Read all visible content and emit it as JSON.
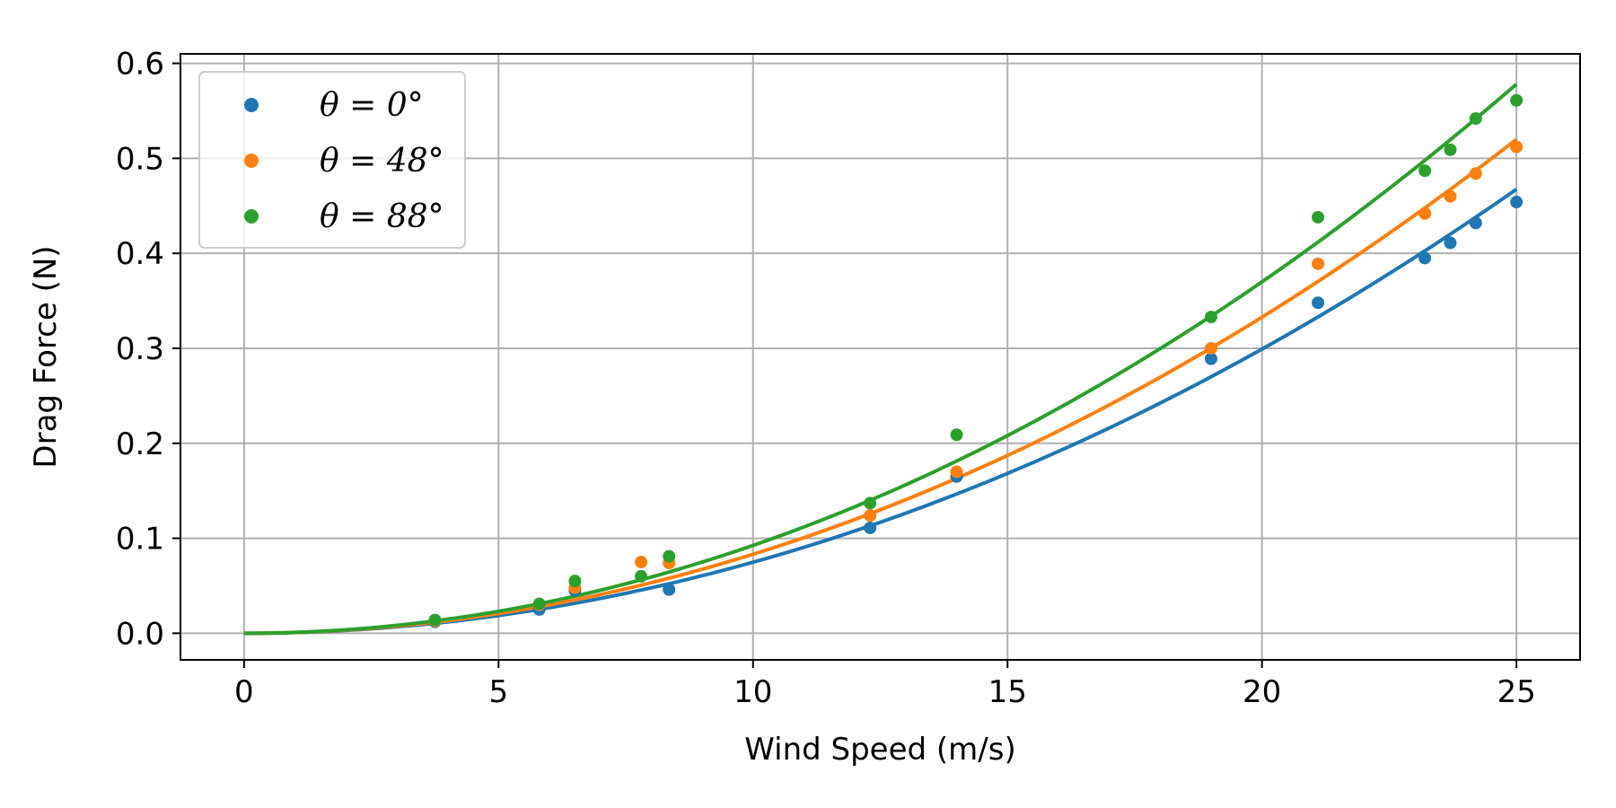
{
  "chart_data": {
    "type": "scatter",
    "xlabel": "Wind Speed (m/s)",
    "ylabel": "Drag Force (N)",
    "xlim": [
      -1.25,
      26.25
    ],
    "ylim": [
      -0.028,
      0.61
    ],
    "xticks": [
      0,
      5,
      10,
      15,
      20,
      25
    ],
    "xtick_labels": [
      "0",
      "5",
      "10",
      "15",
      "20",
      "25"
    ],
    "yticks": [
      0.0,
      0.1,
      0.2,
      0.3,
      0.4,
      0.5,
      0.6
    ],
    "ytick_labels": [
      "0.0",
      "0.1",
      "0.2",
      "0.3",
      "0.4",
      "0.5",
      "0.6"
    ],
    "grid": true,
    "legend_position": "upper-left",
    "series": [
      {
        "name": "θ = 0°",
        "color": "#1f77b4",
        "x": [
          3.75,
          5.8,
          6.5,
          8.35,
          12.3,
          14.0,
          19.0,
          21.1,
          23.2,
          23.7,
          24.2,
          25.0
        ],
        "y": [
          0.012,
          0.025,
          0.045,
          0.046,
          0.111,
          0.165,
          0.289,
          0.348,
          0.395,
          0.411,
          0.432,
          0.454
        ],
        "fit_coefficient": 0.000748
      },
      {
        "name": "θ = 48°",
        "color": "#ff7f0e",
        "x": [
          3.75,
          5.8,
          6.5,
          7.8,
          8.35,
          12.3,
          14.0,
          19.0,
          21.1,
          23.2,
          23.7,
          24.2,
          25.0
        ],
        "y": [
          0.013,
          0.03,
          0.048,
          0.075,
          0.074,
          0.124,
          0.17,
          0.3,
          0.389,
          0.442,
          0.46,
          0.484,
          0.512
        ],
        "fit_coefficient": 0.000832
      },
      {
        "name": "θ = 88°",
        "color": "#2ca02c",
        "x": [
          3.75,
          5.8,
          6.5,
          7.8,
          8.35,
          12.3,
          14.0,
          19.0,
          21.1,
          23.2,
          23.7,
          24.2,
          25.0
        ],
        "y": [
          0.014,
          0.031,
          0.055,
          0.06,
          0.081,
          0.137,
          0.209,
          0.333,
          0.438,
          0.487,
          0.509,
          0.542,
          0.561
        ],
        "fit_coefficient": 0.000925
      }
    ]
  }
}
